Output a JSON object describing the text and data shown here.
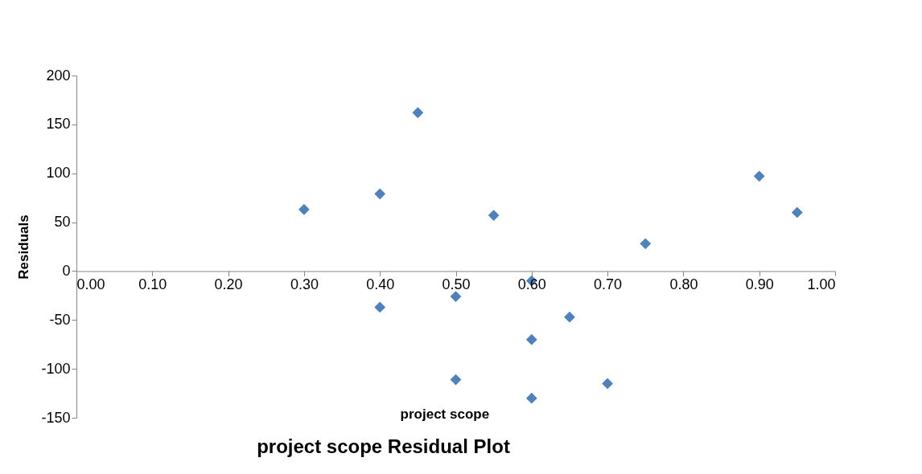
{
  "chart_data": {
    "type": "scatter",
    "title": "project scope   Residual Plot",
    "xlabel": "project scope",
    "ylabel": "Residuals",
    "x": [
      0.3,
      0.4,
      0.45,
      0.55,
      0.9,
      0.95,
      0.75,
      0.6,
      0.5,
      0.4,
      0.65,
      0.6,
      0.5,
      0.7,
      0.6
    ],
    "series": [
      {
        "color": "#4f81bd",
        "values": [
          63,
          79,
          162,
          57,
          97,
          60,
          28,
          -10,
          -26,
          -37,
          -47,
          -70,
          -111,
          -115,
          -130
        ]
      }
    ],
    "marker": "diamond",
    "grid": false,
    "legend": false,
    "xlim": [
      0,
      1
    ],
    "xticks": [
      {
        "value": 0,
        "label": "0.00"
      },
      {
        "value": 0.1,
        "label": "0.10"
      },
      {
        "value": 0.2,
        "label": "0.20"
      },
      {
        "value": 0.3,
        "label": "0.30"
      },
      {
        "value": 0.4,
        "label": "0.40"
      },
      {
        "value": 0.5,
        "label": "0.50"
      },
      {
        "value": 0.6,
        "label": "0.60"
      },
      {
        "value": 0.7,
        "label": "0.70"
      },
      {
        "value": 0.8,
        "label": "0.80"
      },
      {
        "value": 0.9,
        "label": "0.90"
      },
      {
        "value": 1,
        "label": "1.00"
      }
    ],
    "ylim": [
      -150,
      200
    ],
    "yticks": [
      -150,
      -100,
      -50,
      0,
      50,
      100,
      150,
      200
    ]
  }
}
